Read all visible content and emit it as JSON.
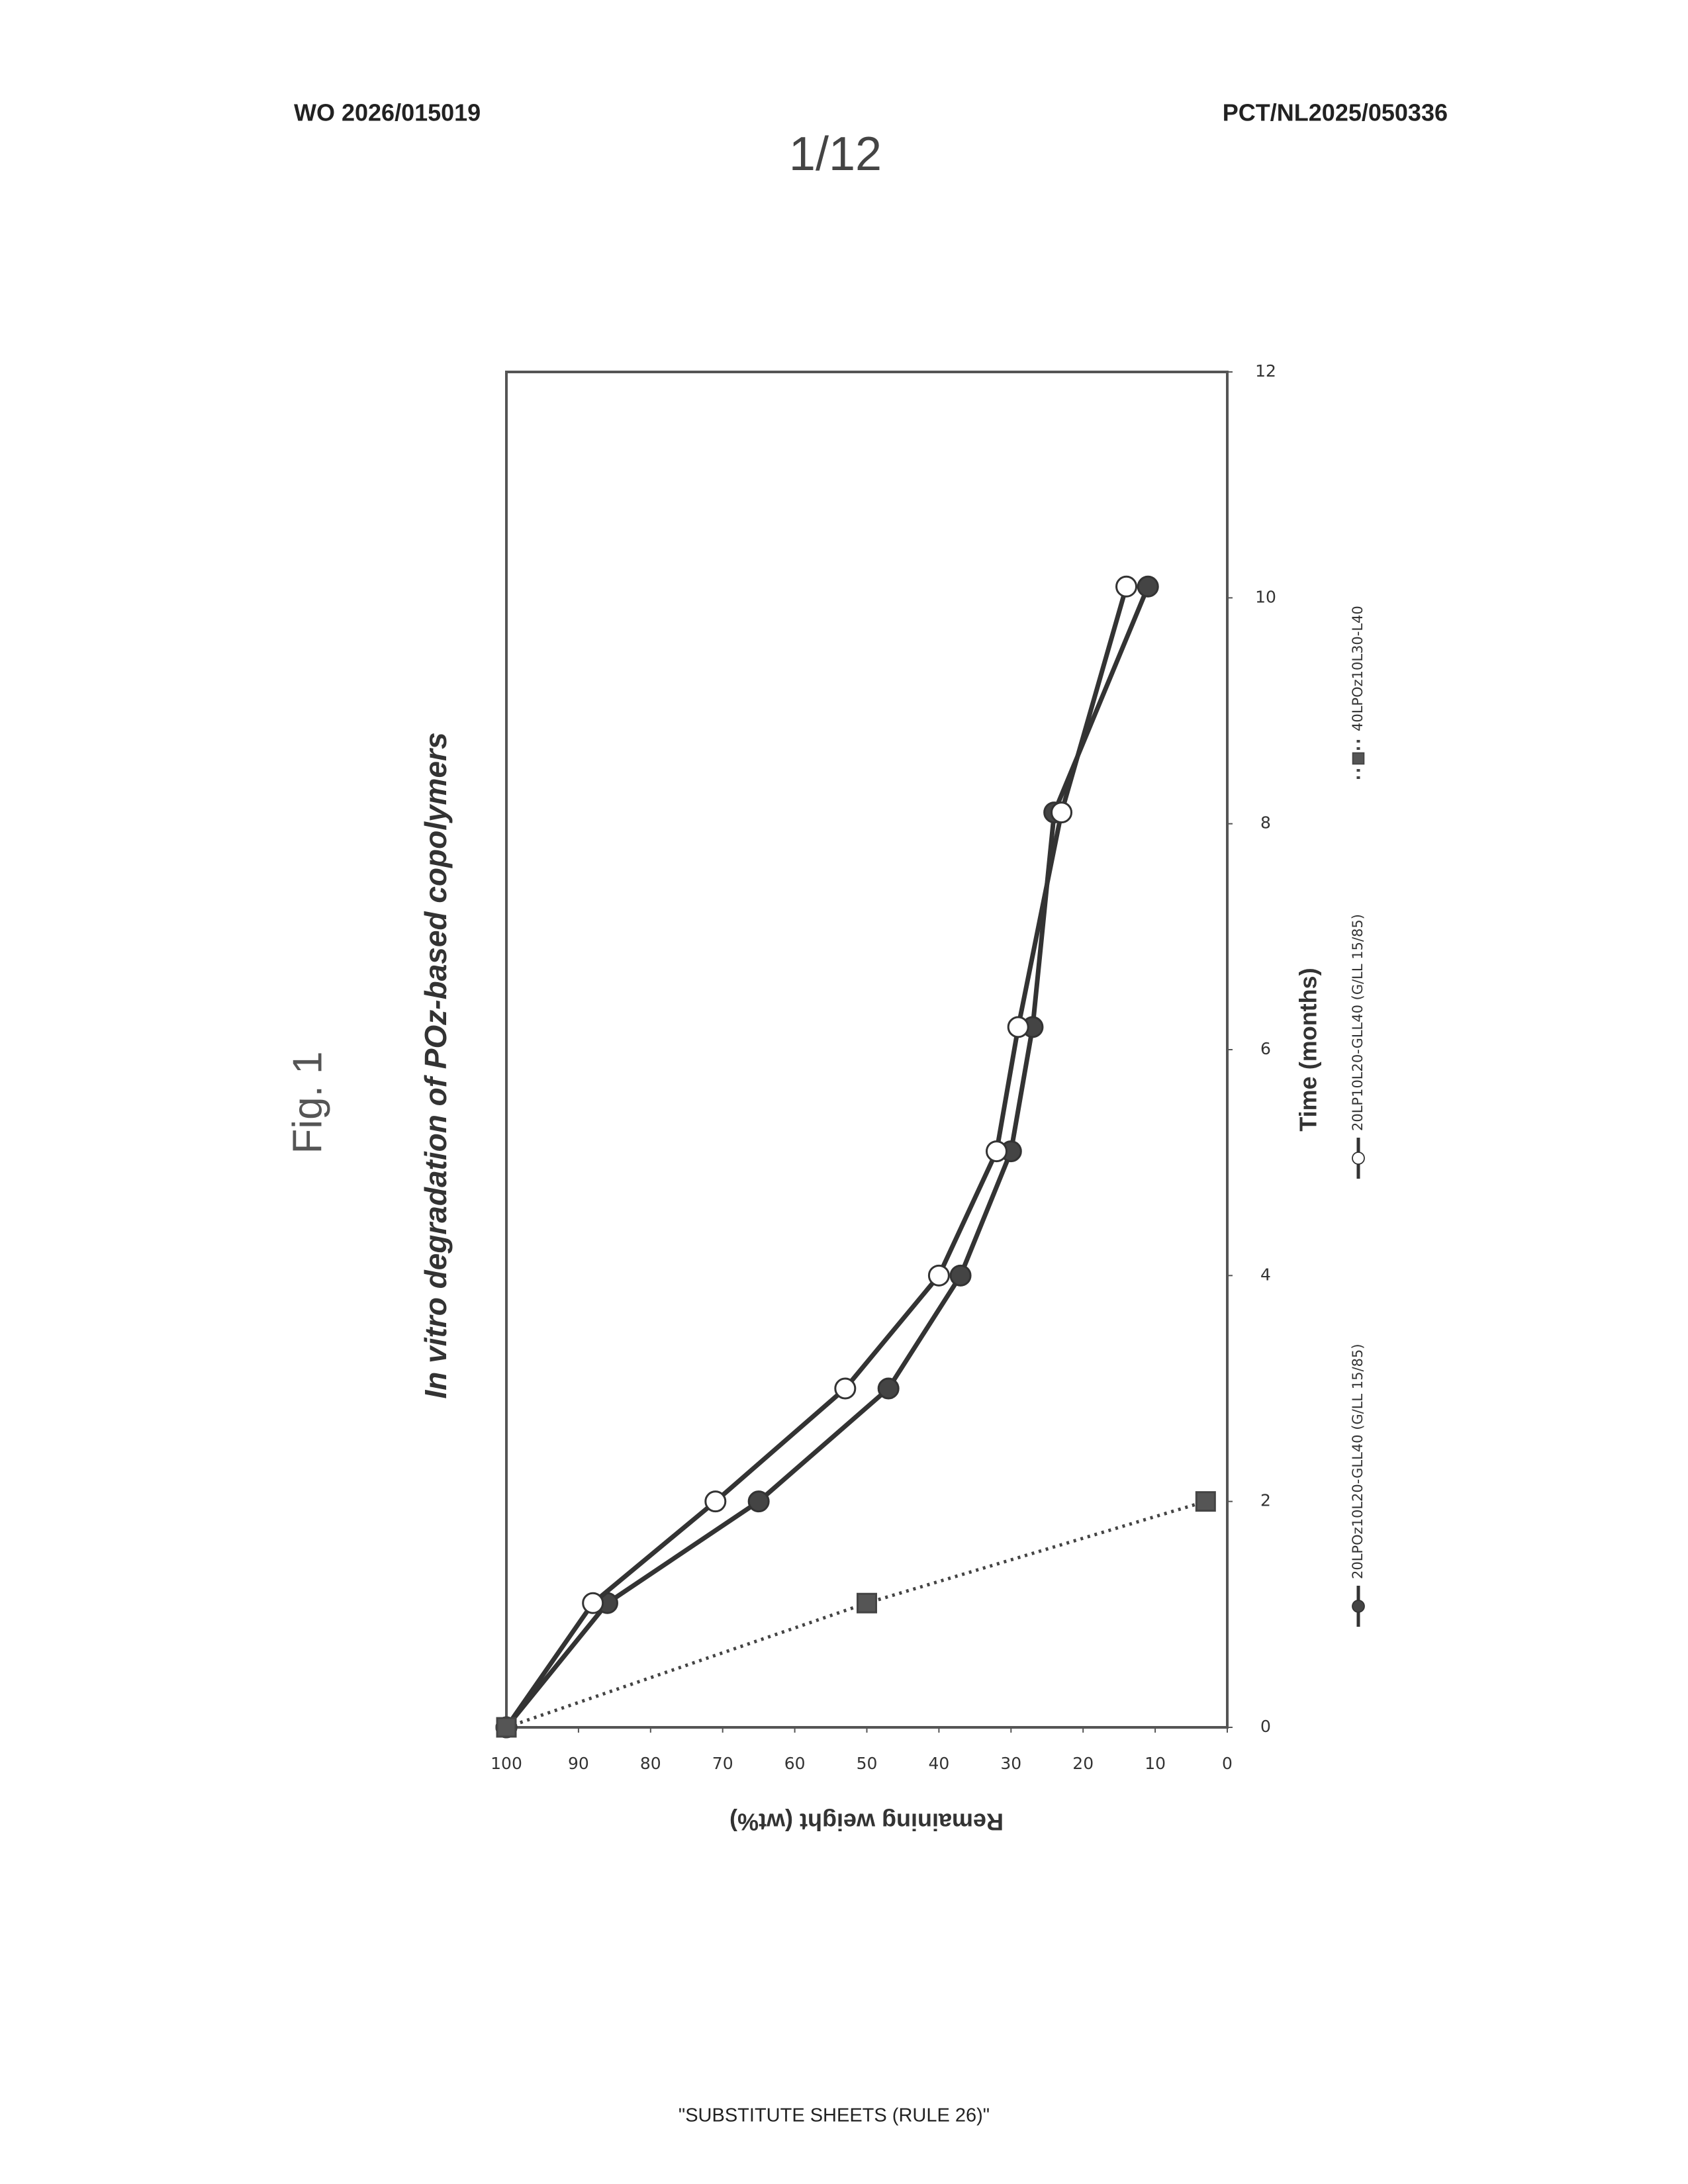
{
  "page": {
    "header_left": "WO 2026/015019",
    "header_right": "PCT/NL2025/050336",
    "page_number": "1/12",
    "footer": "\"SUBSTITUTE SHEETS (RULE 26)\""
  },
  "chart_data": {
    "type": "line",
    "figure_label": "Fig. 1",
    "title": "In vitro degradation of POz-based copolymers",
    "x_label": "Time (months)",
    "y_label": "Remaining weight (wt%)",
    "xlim": [
      0,
      12
    ],
    "xticks": [
      0,
      2,
      4,
      6,
      8,
      10,
      12
    ],
    "ylim": [
      0,
      100
    ],
    "yticks": [
      0,
      10,
      20,
      30,
      40,
      50,
      60,
      70,
      80,
      90,
      100
    ],
    "series": [
      {
        "name": "20LPOz10L20-GLL40 (G/LL 15/85)",
        "color": "#333333",
        "fill": "#444444",
        "marker": "circle",
        "linestyle": "solid",
        "x": [
          0,
          1.1,
          2,
          3,
          4,
          5.1,
          6.2,
          8.1,
          10.1
        ],
        "values": [
          100,
          86,
          65,
          47,
          37,
          30,
          27,
          24,
          11
        ]
      },
      {
        "name": "20LP10L20-GLL40 (G/LL 15/85)",
        "color": "#333333",
        "fill": "#ffffff",
        "marker": "circle",
        "linestyle": "solid",
        "x": [
          0,
          1.1,
          2,
          3,
          4,
          5.1,
          6.2,
          8.1,
          10.1
        ],
        "values": [
          100,
          88,
          71,
          53,
          40,
          32,
          29,
          23,
          14
        ]
      },
      {
        "name": "40LPOz10L30-L40",
        "color": "#444444",
        "fill": "#555555",
        "marker": "square",
        "linestyle": "dotted",
        "x": [
          0,
          1.1,
          2
        ],
        "values": [
          100,
          50,
          3
        ]
      }
    ]
  }
}
